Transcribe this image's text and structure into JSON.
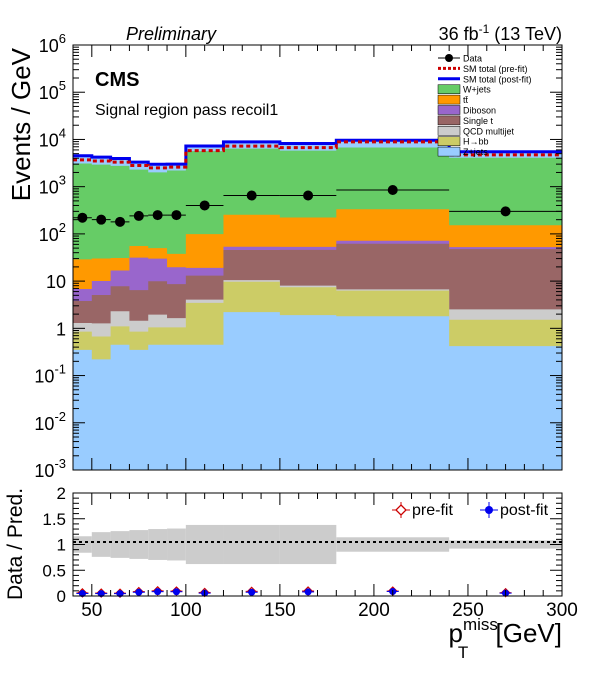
{
  "header": {
    "preliminary": "Preliminary",
    "lumi": "36 fb",
    "lumi_exp": "-1",
    "energy": " (13 TeV)"
  },
  "main": {
    "cms": "CMS",
    "region": "Signal region pass recoil1",
    "ylabel": "Events / GeV"
  },
  "ratio": {
    "ylabel": "Data / Pred.",
    "xlabel_main": "p",
    "xlabel_sub": "T",
    "xlabel_sup": "miss",
    "xlabel_unit": " [GeV]",
    "legend": {
      "prefit": "pre-fit",
      "postfit": "post-fit"
    }
  },
  "legend": [
    {
      "label": "Data",
      "kind": "data"
    },
    {
      "label": "SM total (pre-fit)",
      "kind": "dashed",
      "color": "#cc0000"
    },
    {
      "label": "SM total (post-fit)",
      "kind": "line",
      "color": "#0000ee"
    },
    {
      "label": "W+jets",
      "kind": "fill",
      "color": "#66cc66"
    },
    {
      "label": "tt̄",
      "kind": "fill",
      "color": "#ff9900"
    },
    {
      "label": "Diboson",
      "kind": "fill",
      "color": "#9966cc"
    },
    {
      "label": "Single t",
      "kind": "fill",
      "color": "#996666"
    },
    {
      "label": "QCD multijet",
      "kind": "fill",
      "color": "#cccccc"
    },
    {
      "label": "H→bb",
      "kind": "fill",
      "color": "#cccc66"
    },
    {
      "label": "Z+jets",
      "kind": "fill",
      "color": "#99ccff"
    }
  ],
  "chart_data": [
    {
      "type": "area",
      "subtype": "stacked-histogram",
      "ylabel": "Events / GeV",
      "xlabel": "",
      "xlim": [
        40,
        300
      ],
      "ylim": [
        0.001,
        1000000
      ],
      "yscale": "log",
      "yticks": [
        {
          "base": "10",
          "exp": "-3",
          "value": 0.001
        },
        {
          "base": "10",
          "exp": "-2",
          "value": 0.01
        },
        {
          "base": "10",
          "exp": "-1",
          "value": 0.1
        },
        {
          "base": "1",
          "exp": "",
          "value": 1
        },
        {
          "base": "10",
          "exp": "",
          "value": 10
        },
        {
          "base": "10",
          "exp": "2",
          "value": 100
        },
        {
          "base": "10",
          "exp": "3",
          "value": 1000
        },
        {
          "base": "10",
          "exp": "4",
          "value": 10000
        },
        {
          "base": "10",
          "exp": "5",
          "value": 100000
        },
        {
          "base": "10",
          "exp": "6",
          "value": 1000000
        }
      ],
      "bin_edges": [
        40,
        50,
        60,
        70,
        80,
        90,
        100,
        120,
        150,
        180,
        240,
        300
      ],
      "stack": [
        {
          "name": "Z+jets",
          "color": "#99ccff",
          "values": [
            0.35,
            0.22,
            0.45,
            0.35,
            0.45,
            0.45,
            0.45,
            2.2,
            1.9,
            1.8,
            0.42
          ]
        },
        {
          "name": "H→bb",
          "color": "#cccc66",
          "values": [
            0.5,
            0.45,
            0.65,
            0.5,
            0.6,
            0.6,
            3.0,
            7.5,
            5.5,
            4.5,
            1.1
          ]
        },
        {
          "name": "QCD multijet",
          "color": "#cccccc",
          "values": [
            0.45,
            0.6,
            1.2,
            0.6,
            0.9,
            0.6,
            0.6,
            0.8,
            0.6,
            0.4,
            1.0
          ]
        },
        {
          "name": "Single t",
          "color": "#996666",
          "values": [
            2.5,
            3.8,
            5.5,
            5.0,
            8.0,
            7.0,
            9.0,
            35.0,
            38.0,
            55.0,
            45.0
          ]
        },
        {
          "name": "Diboson",
          "color": "#9966cc",
          "values": [
            3.0,
            5.0,
            9.0,
            25.0,
            20.0,
            11.0,
            6.0,
            8.0,
            7.0,
            10.0,
            5.0
          ]
        },
        {
          "name": "tt̄",
          "color": "#ff9900",
          "values": [
            22.0,
            20.0,
            14.0,
            24.0,
            20.0,
            18.0,
            80.0,
            200.0,
            170.0,
            260.0,
            100.0
          ]
        },
        {
          "name": "W+jets",
          "color": "#66cc66",
          "values": [
            3070.0,
            2900.0,
            2720.0,
            2240.0,
            1960.0,
            2160.0,
            5550.0,
            6150.0,
            5590.0,
            6400.0,
            3950.0
          ]
        },
        {
          "name": "Z→νν",
          "color": "#99ccff",
          "values": [
            1400.0,
            1300.0,
            1200.0,
            1000.0,
            970.0,
            800.0,
            1600.0,
            2500.0,
            2400.0,
            2900.0,
            1400.0
          ]
        }
      ],
      "sm_total_prefit": [
        3700,
        3500,
        3300,
        2800,
        2500,
        2600,
        5800,
        7200,
        6700,
        8900,
        4700
      ],
      "sm_total_postfit": [
        4520,
        4230,
        3950,
        3300,
        2980,
        3010,
        7250,
        8900,
        8210,
        9630,
        5500
      ],
      "data": {
        "x": [
          45,
          55,
          65,
          75,
          85,
          95,
          110,
          135,
          165,
          210,
          270
        ],
        "y": [
          220,
          200,
          180,
          240,
          250,
          250,
          400,
          650,
          650,
          850,
          300
        ]
      }
    },
    {
      "type": "scatter",
      "subtype": "ratio",
      "ylabel": "Data / Pred.",
      "xlabel": "p_T^miss [GeV]",
      "xlim": [
        40,
        300
      ],
      "ylim": [
        0,
        2
      ],
      "xticks": [
        50,
        100,
        150,
        200,
        250,
        300
      ],
      "yticks": [
        0,
        0.5,
        1,
        1.5,
        2
      ],
      "reference_line": 1,
      "band": {
        "bin_edges": [
          40,
          50,
          60,
          70,
          80,
          90,
          100,
          120,
          150,
          180,
          240,
          300
        ],
        "low": [
          0.84,
          0.76,
          0.74,
          0.72,
          0.7,
          0.69,
          0.62,
          0.62,
          0.62,
          0.86,
          0.92
        ],
        "high": [
          1.16,
          1.24,
          1.26,
          1.28,
          1.3,
          1.31,
          1.38,
          1.38,
          1.38,
          1.14,
          1.08
        ]
      },
      "series": [
        {
          "name": "pre-fit",
          "color": "#cc0000",
          "x": [
            45,
            55,
            65,
            75,
            85,
            95,
            110,
            135,
            165,
            210,
            270
          ],
          "values": [
            0.06,
            0.057,
            0.055,
            0.085,
            0.1,
            0.096,
            0.069,
            0.09,
            0.097,
            0.096,
            0.064
          ]
        },
        {
          "name": "post-fit",
          "color": "#0000ee",
          "x": [
            45,
            55,
            65,
            75,
            85,
            95,
            110,
            135,
            165,
            210,
            270
          ],
          "values": [
            0.049,
            0.047,
            0.046,
            0.073,
            0.084,
            0.083,
            0.055,
            0.073,
            0.079,
            0.088,
            0.055
          ]
        }
      ]
    }
  ]
}
